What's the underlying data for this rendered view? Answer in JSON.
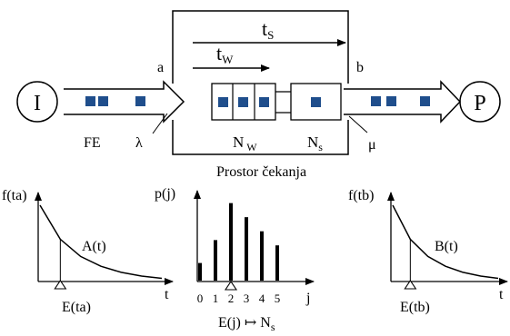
{
  "source_node": {
    "label": "I"
  },
  "sink_node": {
    "label": "P"
  },
  "stream_labels": {
    "input": "FE",
    "arrival_rate": "λ",
    "service_rate": "μ"
  },
  "system": {
    "point_a": "a",
    "point_b": "b",
    "time_system": {
      "main": "t",
      "sub": "S"
    },
    "time_wait": {
      "main": "t",
      "sub": "W"
    },
    "queue_count": {
      "main": "N",
      "sub": "W"
    },
    "service_count": {
      "main": "N",
      "sub": "s"
    },
    "caption": "Prostor čekanja"
  },
  "colors": {
    "customer": "#1f4e8c",
    "stroke": "#000000",
    "arrow_fill": "#ffffff"
  },
  "chart_data": [
    {
      "type": "line",
      "ylabel": "f(ta)",
      "xlabel": "t",
      "curve_label": "A(t)",
      "marker_label": "E(ta)",
      "x": [
        0,
        1,
        2,
        3,
        4,
        5,
        6
      ],
      "y": [
        1.0,
        0.55,
        0.32,
        0.19,
        0.11,
        0.06,
        0.03
      ]
    },
    {
      "type": "bar",
      "ylabel": "p(j)",
      "xlabel": "j",
      "categories": [
        "0",
        "1",
        "2",
        "3",
        "4",
        "5"
      ],
      "values": [
        0.1,
        0.23,
        0.44,
        0.36,
        0.28,
        0.2
      ],
      "marker_label": "E(j) ↦ N",
      "marker_sub": "s"
    },
    {
      "type": "line",
      "ylabel": "f(tb)",
      "xlabel": "t",
      "curve_label": "B(t)",
      "marker_label": "E(tb)",
      "x": [
        0,
        1,
        2,
        3,
        4,
        5,
        6
      ],
      "y": [
        1.0,
        0.55,
        0.32,
        0.19,
        0.11,
        0.06,
        0.03
      ]
    }
  ]
}
